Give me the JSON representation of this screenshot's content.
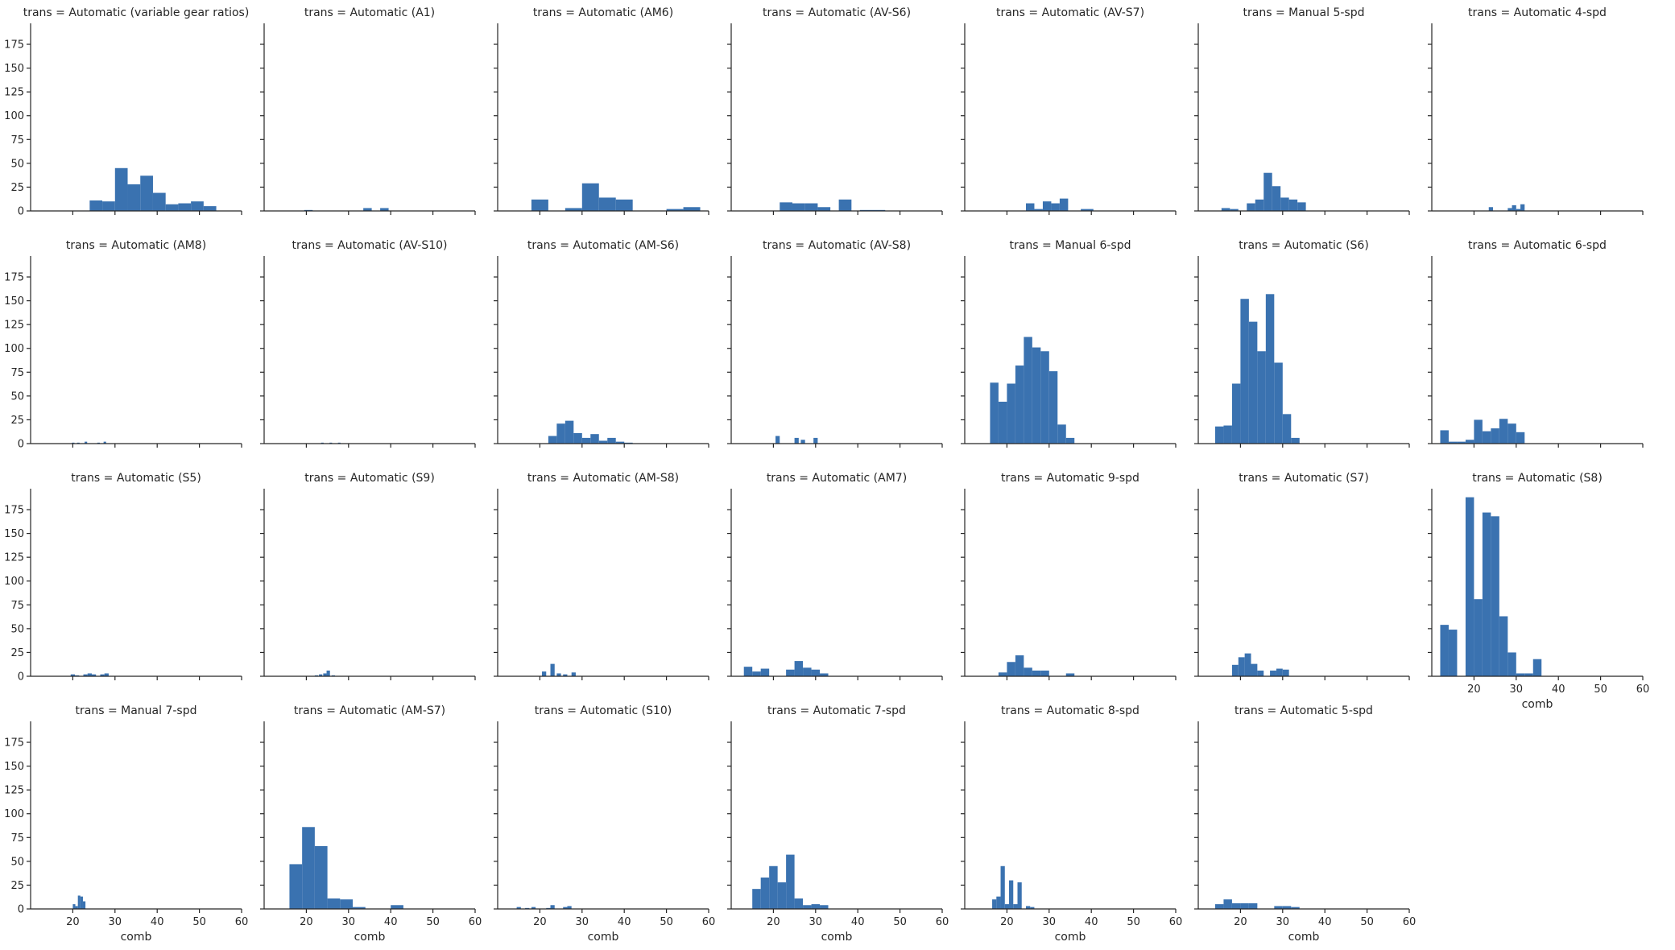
{
  "chart_data": {
    "type": "histogram",
    "title": "",
    "x_label": "comb",
    "x_ticks": [
      20,
      30,
      40,
      50,
      60
    ],
    "y_ticks": [
      0,
      25,
      50,
      75,
      100,
      125,
      150,
      175
    ],
    "xlim": [
      10,
      60
    ],
    "ylim": [
      0,
      197
    ],
    "bar_color": "#3a72b0",
    "grid": false,
    "facet_variable": "trans",
    "facets": [
      {
        "label": "trans = Automatic (variable gear ratios)",
        "bins": [
          [
            24,
            27,
            11
          ],
          [
            27,
            30,
            10
          ],
          [
            30,
            33,
            45
          ],
          [
            33,
            36,
            28
          ],
          [
            36,
            39,
            37
          ],
          [
            39,
            42,
            19
          ],
          [
            42,
            45,
            7
          ],
          [
            45,
            48,
            8
          ],
          [
            48,
            51,
            10
          ],
          [
            51,
            54,
            5
          ]
        ]
      },
      {
        "label": "trans = Automatic (A1)",
        "bins": [
          [
            19.5,
            21.5,
            1
          ],
          [
            33.5,
            35.5,
            3
          ],
          [
            37.5,
            39.5,
            3
          ]
        ]
      },
      {
        "label": "trans = Automatic (AM6)",
        "bins": [
          [
            18,
            22,
            12
          ],
          [
            26,
            30,
            3
          ],
          [
            30,
            34,
            29
          ],
          [
            34,
            38,
            14
          ],
          [
            38,
            42,
            12
          ],
          [
            50,
            54,
            2
          ],
          [
            54,
            58,
            4
          ]
        ]
      },
      {
        "label": "trans = Automatic (AV-S6)",
        "bins": [
          [
            21.5,
            24.5,
            9
          ],
          [
            24.5,
            27.5,
            8
          ],
          [
            27.5,
            30.5,
            8
          ],
          [
            30.5,
            33.5,
            4
          ],
          [
            35.5,
            38.5,
            12
          ],
          [
            40.5,
            46.5,
            1
          ]
        ]
      },
      {
        "label": "trans = Automatic (AV-S7)",
        "bins": [
          [
            24.5,
            26.5,
            8
          ],
          [
            26.5,
            28.5,
            2
          ],
          [
            28.5,
            30.5,
            10
          ],
          [
            30.5,
            32.5,
            8
          ],
          [
            32.5,
            34.5,
            13
          ],
          [
            37.5,
            40.5,
            2
          ]
        ]
      },
      {
        "label": "trans = Manual 5-spd",
        "bins": [
          [
            15.5,
            17.5,
            3
          ],
          [
            17.5,
            19.5,
            2
          ],
          [
            19.5,
            21.5,
            0
          ],
          [
            21.5,
            23.5,
            8
          ],
          [
            23.5,
            25.5,
            12
          ],
          [
            25.5,
            27.5,
            40
          ],
          [
            27.5,
            29.5,
            26
          ],
          [
            29.5,
            31.5,
            14
          ],
          [
            31.5,
            33.5,
            12
          ],
          [
            33.5,
            35.5,
            9
          ]
        ]
      },
      {
        "label": "trans = Automatic 4-spd",
        "bins": [
          [
            23.5,
            24.5,
            4
          ],
          [
            28,
            29,
            3
          ],
          [
            29,
            30,
            6
          ],
          [
            30,
            31,
            2
          ],
          [
            31,
            32,
            7
          ]
        ]
      },
      {
        "label": "trans = Automatic (AM8)",
        "bins": [
          [
            19.8,
            20.4,
            1
          ],
          [
            21,
            21.6,
            1
          ],
          [
            22.8,
            23.4,
            2
          ],
          [
            25.8,
            26.4,
            1
          ],
          [
            27.3,
            27.9,
            2
          ]
        ]
      },
      {
        "label": "trans = Automatic (AV-S10)",
        "bins": [
          [
            23.5,
            24.1,
            1
          ],
          [
            25.5,
            26.1,
            1
          ],
          [
            27.5,
            28.1,
            1
          ]
        ]
      },
      {
        "label": "trans = Automatic (AM-S6)",
        "bins": [
          [
            22,
            24,
            8
          ],
          [
            24,
            26,
            21
          ],
          [
            26,
            28,
            24
          ],
          [
            28,
            30,
            11
          ],
          [
            30,
            32,
            6
          ],
          [
            32,
            34,
            10
          ],
          [
            34,
            36,
            3
          ],
          [
            36,
            38,
            6
          ],
          [
            38,
            40,
            2
          ],
          [
            40,
            42,
            1
          ]
        ]
      },
      {
        "label": "trans = Automatic (AV-S8)",
        "bins": [
          [
            20.5,
            21.5,
            8
          ],
          [
            25,
            26,
            6
          ],
          [
            26.5,
            27.5,
            4
          ],
          [
            29.5,
            30.5,
            6
          ]
        ]
      },
      {
        "label": "trans = Manual 6-spd",
        "bins": [
          [
            16,
            18,
            64
          ],
          [
            18,
            20,
            44
          ],
          [
            20,
            22,
            63
          ],
          [
            22,
            24,
            82
          ],
          [
            24,
            26,
            112
          ],
          [
            26,
            28,
            101
          ],
          [
            28,
            30,
            97
          ],
          [
            30,
            32,
            76
          ],
          [
            32,
            34,
            20
          ],
          [
            34,
            36,
            6
          ]
        ]
      },
      {
        "label": "trans = Automatic (S6)",
        "bins": [
          [
            14,
            16,
            18
          ],
          [
            16,
            18,
            19
          ],
          [
            18,
            20,
            63
          ],
          [
            20,
            22,
            152
          ],
          [
            22,
            24,
            128
          ],
          [
            24,
            26,
            97
          ],
          [
            26,
            28,
            157
          ],
          [
            28,
            30,
            85
          ],
          [
            30,
            32,
            31
          ],
          [
            32,
            34,
            6
          ]
        ]
      },
      {
        "label": "trans = Automatic 6-spd",
        "bins": [
          [
            12,
            14,
            14
          ],
          [
            14,
            16,
            2
          ],
          [
            16,
            18,
            2
          ],
          [
            18,
            20,
            4
          ],
          [
            20,
            22,
            25
          ],
          [
            22,
            24,
            13
          ],
          [
            24,
            26,
            16
          ],
          [
            26,
            28,
            26
          ],
          [
            28,
            30,
            21
          ],
          [
            30,
            32,
            12
          ]
        ]
      },
      {
        "label": "trans = Automatic (S5)",
        "bins": [
          [
            19.5,
            20.5,
            2
          ],
          [
            20.5,
            21.5,
            1
          ],
          [
            22.5,
            23.5,
            2
          ],
          [
            23.5,
            24.5,
            3
          ],
          [
            24.5,
            25.5,
            2
          ],
          [
            26.5,
            27.5,
            2
          ],
          [
            27.5,
            28.5,
            3
          ]
        ]
      },
      {
        "label": "trans = Automatic (S9)",
        "bins": [
          [
            22,
            22.8,
            1
          ],
          [
            23,
            23.8,
            2
          ],
          [
            24,
            24.8,
            3
          ],
          [
            24.8,
            25.6,
            6
          ],
          [
            26,
            26.8,
            1
          ]
        ]
      },
      {
        "label": "trans = Automatic (AM-S8)",
        "bins": [
          [
            20.5,
            21.5,
            5
          ],
          [
            22.5,
            23.5,
            13
          ],
          [
            24,
            25,
            3
          ],
          [
            25.5,
            26.5,
            2
          ],
          [
            27.5,
            28.5,
            4
          ]
        ]
      },
      {
        "label": "trans = Automatic (AM7)",
        "bins": [
          [
            13,
            15,
            10
          ],
          [
            15,
            17,
            5
          ],
          [
            17,
            19,
            8
          ],
          [
            19,
            21,
            0
          ],
          [
            21,
            23,
            0
          ],
          [
            23,
            25,
            7
          ],
          [
            25,
            27,
            16
          ],
          [
            27,
            29,
            9
          ],
          [
            29,
            31,
            7
          ],
          [
            31,
            33,
            3
          ]
        ]
      },
      {
        "label": "trans = Automatic 9-spd",
        "bins": [
          [
            18,
            20,
            4
          ],
          [
            20,
            22,
            15
          ],
          [
            22,
            24,
            22
          ],
          [
            24,
            26,
            9
          ],
          [
            26,
            28,
            6
          ],
          [
            28,
            30,
            6
          ],
          [
            34,
            36,
            3
          ]
        ]
      },
      {
        "label": "trans = Automatic (S7)",
        "bins": [
          [
            18,
            19.5,
            12
          ],
          [
            19.5,
            21,
            20
          ],
          [
            21,
            22.5,
            24
          ],
          [
            22.5,
            24,
            13
          ],
          [
            24,
            25.5,
            6
          ],
          [
            27,
            28.5,
            6
          ],
          [
            28.5,
            30,
            8
          ],
          [
            30,
            31.5,
            7
          ]
        ]
      },
      {
        "label": "trans = Automatic (S8)",
        "bins": [
          [
            12,
            14,
            54
          ],
          [
            14,
            16,
            49
          ],
          [
            16,
            18,
            0
          ],
          [
            18,
            20,
            188
          ],
          [
            20,
            22,
            81
          ],
          [
            22,
            24,
            172
          ],
          [
            24,
            26,
            168
          ],
          [
            26,
            28,
            63
          ],
          [
            28,
            30,
            25
          ],
          [
            30,
            32,
            3
          ],
          [
            32,
            34,
            3
          ],
          [
            34,
            36,
            18
          ]
        ]
      },
      {
        "label": "trans = Manual 7-spd",
        "bins": [
          [
            20,
            20.6,
            5
          ],
          [
            20.6,
            21.2,
            3
          ],
          [
            21.2,
            21.8,
            14
          ],
          [
            21.8,
            22.4,
            13
          ],
          [
            22.4,
            23,
            8
          ]
        ]
      },
      {
        "label": "trans = Automatic (AM-S7)",
        "bins": [
          [
            16,
            19,
            47
          ],
          [
            19,
            22,
            86
          ],
          [
            22,
            25,
            66
          ],
          [
            25,
            28,
            11
          ],
          [
            28,
            31,
            10
          ],
          [
            31,
            34,
            2
          ],
          [
            40,
            43,
            4
          ]
        ]
      },
      {
        "label": "trans = Automatic (S10)",
        "bins": [
          [
            14.5,
            15.5,
            2
          ],
          [
            16.5,
            17.5,
            1
          ],
          [
            18,
            19,
            2
          ],
          [
            21.5,
            22.5,
            1
          ],
          [
            22.5,
            23.5,
            4
          ],
          [
            25.5,
            26.5,
            2
          ],
          [
            26.5,
            27.5,
            3
          ]
        ]
      },
      {
        "label": "trans = Automatic 7-spd",
        "bins": [
          [
            15,
            17,
            21
          ],
          [
            17,
            19,
            33
          ],
          [
            19,
            21,
            45
          ],
          [
            21,
            23,
            28
          ],
          [
            23,
            25,
            57
          ],
          [
            25,
            27,
            11
          ],
          [
            27,
            29,
            4
          ],
          [
            29,
            31,
            5
          ],
          [
            31,
            33,
            4
          ]
        ]
      },
      {
        "label": "trans = Automatic 8-spd",
        "bins": [
          [
            16.5,
            17.5,
            10
          ],
          [
            17.5,
            18.5,
            13
          ],
          [
            18.5,
            19.5,
            45
          ],
          [
            19.5,
            20.5,
            5
          ],
          [
            20.5,
            21.5,
            30
          ],
          [
            21.5,
            22.5,
            5
          ],
          [
            22.5,
            23.5,
            28
          ],
          [
            24.5,
            25.5,
            3
          ],
          [
            25.5,
            26.5,
            2
          ]
        ]
      },
      {
        "label": "trans = Automatic 5-spd",
        "bins": [
          [
            14,
            16,
            5
          ],
          [
            16,
            18,
            10
          ],
          [
            18,
            20,
            6
          ],
          [
            20,
            22,
            6
          ],
          [
            22,
            24,
            6
          ],
          [
            28,
            30,
            3
          ],
          [
            30,
            32,
            3
          ],
          [
            32,
            34,
            2
          ]
        ]
      }
    ]
  }
}
